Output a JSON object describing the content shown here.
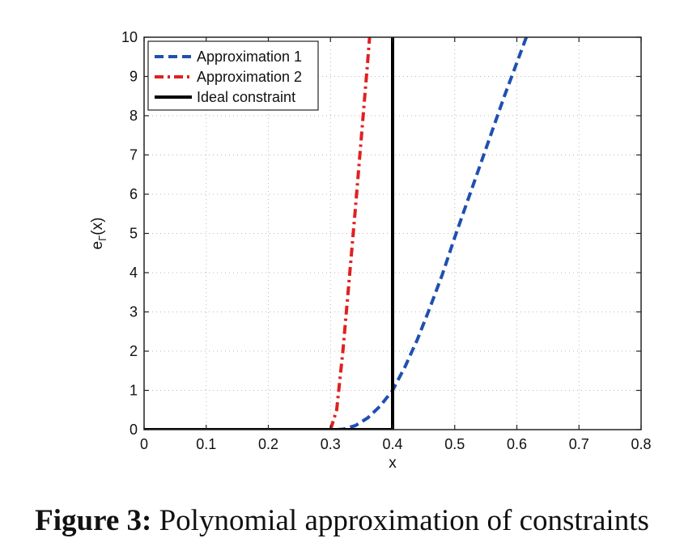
{
  "chart_data": {
    "type": "line",
    "xlabel": "x",
    "ylabel_main": "e",
    "ylabel_sub": "Γ",
    "ylabel_tail": "(x)",
    "xlim": [
      0,
      0.8
    ],
    "ylim": [
      0,
      10
    ],
    "x_ticks": [
      0,
      0.1,
      0.2,
      0.3,
      0.4,
      0.5,
      0.6,
      0.7,
      0.8
    ],
    "x_tick_labels": [
      "0",
      "0.1",
      "0.2",
      "0.3",
      "0.4",
      "0.5",
      "0.6",
      "0.7",
      "0.8"
    ],
    "y_ticks": [
      0,
      1,
      2,
      3,
      4,
      5,
      6,
      7,
      8,
      9,
      10
    ],
    "y_tick_labels": [
      "0",
      "1",
      "2",
      "3",
      "4",
      "5",
      "6",
      "7",
      "8",
      "9",
      "10"
    ],
    "grid": true,
    "legend_position": "top-left",
    "series": [
      {
        "name": "Approximation 1",
        "color": "#1f4fb0",
        "style": "dashed",
        "x": [
          0.31,
          0.32,
          0.34,
          0.36,
          0.38,
          0.4,
          0.42,
          0.44,
          0.46,
          0.48,
          0.5,
          0.52,
          0.54,
          0.56,
          0.58,
          0.6,
          0.62
        ],
        "y": [
          0.0,
          0.01,
          0.1,
          0.3,
          0.6,
          1.0,
          1.6,
          2.3,
          3.1,
          3.95,
          4.9,
          5.8,
          6.7,
          7.6,
          8.5,
          9.35,
          10.2
        ]
      },
      {
        "name": "Approximation 2",
        "color": "#e02020",
        "style": "dash-dot",
        "x": [
          0.3,
          0.31,
          0.32,
          0.33,
          0.34,
          0.35,
          0.36,
          0.365
        ],
        "y": [
          0.0,
          0.5,
          2.0,
          3.8,
          5.6,
          7.5,
          9.4,
          10.4
        ]
      },
      {
        "name": "Ideal constraint",
        "color": "#000000",
        "style": "solid",
        "x": [
          0,
          0.4,
          0.4
        ],
        "y": [
          0,
          0,
          10
        ]
      }
    ]
  },
  "caption": {
    "label": "Figure 3:",
    "text": " Polynomial approximation of constraints"
  }
}
